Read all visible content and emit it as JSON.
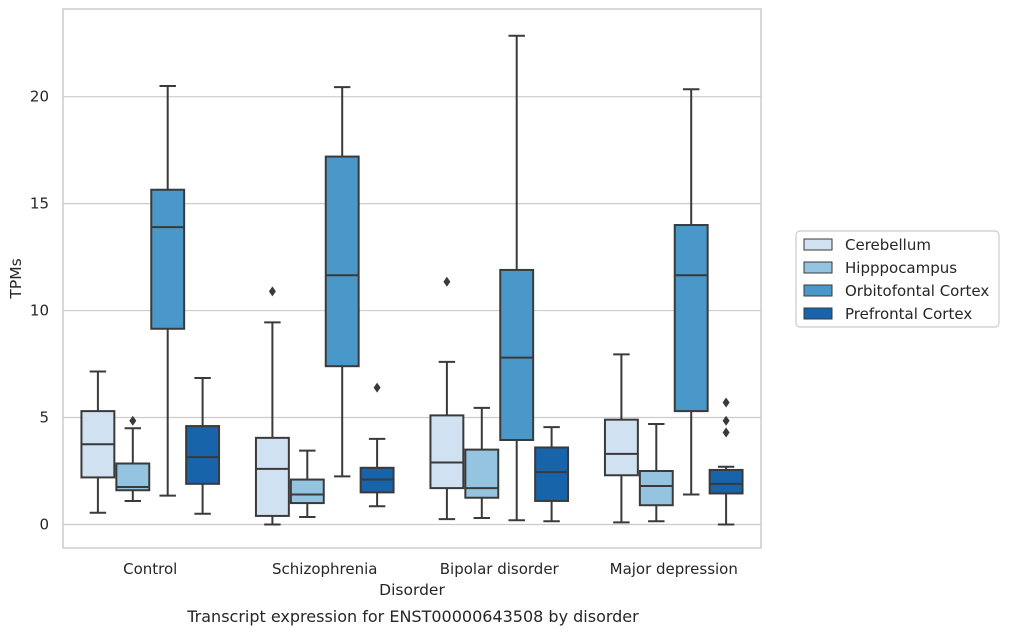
{
  "caption": "Transcript expression for ENST00000643508 by disorder",
  "colors": {
    "Cerebellum": "#d0e1f2",
    "Hipppocampus": "#94c4df",
    "Orbitofontal Cortex": "#4a98c9",
    "Prefrontal Cortex": "#1764ab",
    "grid": "#cccccc",
    "line": "#3a3a3a"
  },
  "chart_data": {
    "type": "box",
    "xlabel": "Disorder",
    "ylabel": "TPMs",
    "ylim": [
      -1.1,
      24.1
    ],
    "yticks": [
      0,
      5,
      10,
      15,
      20
    ],
    "grid": "horizontal",
    "legend_placement": "right",
    "categories": [
      "Control",
      "Schizophrenia",
      "Bipolar disorder",
      "Major depression"
    ],
    "series": [
      {
        "name": "Cerebellum",
        "boxes": [
          {
            "whislo": 0.55,
            "q1": 2.2,
            "med": 3.75,
            "q3": 5.3,
            "whishi": 7.15,
            "fliers": []
          },
          {
            "whislo": 0.0,
            "q1": 0.4,
            "med": 2.6,
            "q3": 4.05,
            "whishi": 9.45,
            "fliers": [
              10.9
            ]
          },
          {
            "whislo": 0.25,
            "q1": 1.7,
            "med": 2.9,
            "q3": 5.1,
            "whishi": 7.6,
            "fliers": [
              11.35
            ]
          },
          {
            "whislo": 0.1,
            "q1": 2.3,
            "med": 3.3,
            "q3": 4.9,
            "whishi": 7.95,
            "fliers": []
          }
        ]
      },
      {
        "name": "Hipppocampus",
        "boxes": [
          {
            "whislo": 1.1,
            "q1": 1.6,
            "med": 1.75,
            "q3": 2.85,
            "whishi": 4.5,
            "fliers": [
              4.85
            ]
          },
          {
            "whislo": 0.35,
            "q1": 1.0,
            "med": 1.4,
            "q3": 2.1,
            "whishi": 3.45,
            "fliers": []
          },
          {
            "whislo": 0.3,
            "q1": 1.25,
            "med": 1.7,
            "q3": 3.5,
            "whishi": 5.45,
            "fliers": []
          },
          {
            "whislo": 0.15,
            "q1": 0.9,
            "med": 1.8,
            "q3": 2.5,
            "whishi": 4.7,
            "fliers": []
          }
        ]
      },
      {
        "name": "Orbitofontal Cortex",
        "boxes": [
          {
            "whislo": 1.35,
            "q1": 9.15,
            "med": 13.9,
            "q3": 15.65,
            "whishi": 20.5,
            "fliers": []
          },
          {
            "whislo": 2.25,
            "q1": 7.4,
            "med": 11.65,
            "q3": 17.2,
            "whishi": 20.45,
            "fliers": []
          },
          {
            "whislo": 0.2,
            "q1": 3.95,
            "med": 7.8,
            "q3": 11.9,
            "whishi": 22.85,
            "fliers": []
          },
          {
            "whislo": 1.4,
            "q1": 5.3,
            "med": 11.65,
            "q3": 14.0,
            "whishi": 20.35,
            "fliers": []
          }
        ]
      },
      {
        "name": "Prefrontal Cortex",
        "boxes": [
          {
            "whislo": 0.5,
            "q1": 1.9,
            "med": 3.15,
            "q3": 4.6,
            "whishi": 6.85,
            "fliers": []
          },
          {
            "whislo": 0.85,
            "q1": 1.5,
            "med": 2.1,
            "q3": 2.65,
            "whishi": 4.0,
            "fliers": [
              6.4
            ]
          },
          {
            "whislo": 0.15,
            "q1": 1.1,
            "med": 2.45,
            "q3": 3.6,
            "whishi": 4.55,
            "fliers": []
          },
          {
            "whislo": 0.0,
            "q1": 1.45,
            "med": 1.9,
            "q3": 2.55,
            "whishi": 2.7,
            "fliers": [
              4.3,
              4.85,
              5.7
            ]
          }
        ]
      }
    ]
  }
}
